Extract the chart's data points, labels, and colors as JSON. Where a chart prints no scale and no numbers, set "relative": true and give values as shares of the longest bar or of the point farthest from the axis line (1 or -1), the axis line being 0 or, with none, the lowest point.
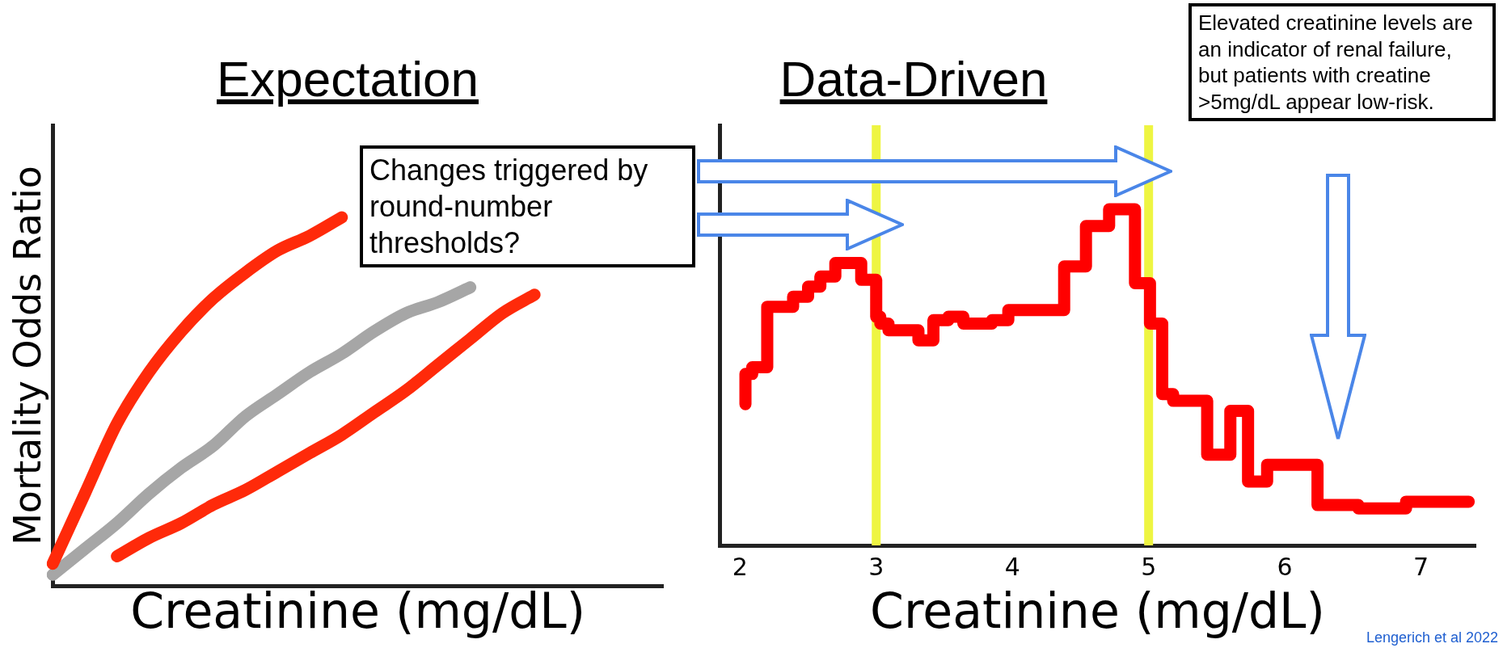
{
  "chart_data": [
    {
      "type": "line",
      "title": "Expectation",
      "xlabel": "Creatinine (mg/dL)",
      "ylabel": "Mortality Odds Ratio",
      "relative": true,
      "tick_labels": false,
      "categories": [
        null,
        null,
        null,
        null,
        null,
        null,
        null,
        null,
        null,
        null,
        null,
        null,
        null,
        null,
        null,
        null,
        null,
        null,
        null,
        null
      ],
      "series": [
        {
          "color": "#ff2a0a",
          "values": [
            0.06,
            0.25,
            0.44,
            0.58,
            0.69,
            0.78,
            0.85,
            0.91,
            0.95,
            1,
            null,
            null,
            null,
            null,
            null,
            null,
            null,
            null,
            null,
            null
          ]
        },
        {
          "color": "#a6a6a6",
          "values": [
            0.03,
            0.1,
            0.17,
            0.25,
            0.32,
            0.38,
            0.46,
            0.52,
            0.58,
            0.63,
            0.69,
            0.74,
            0.77,
            0.81,
            null,
            null,
            null,
            null,
            null,
            null
          ]
        },
        {
          "color": "#ff2a0a",
          "values": [
            null,
            null,
            0.08,
            0.13,
            0.17,
            0.22,
            0.26,
            0.31,
            0.36,
            0.41,
            0.47,
            0.53,
            0.6,
            0.67,
            0.74,
            0.79,
            null,
            null,
            null,
            null
          ]
        }
      ],
      "annotations": [
        "Changes triggered by round-number thresholds?"
      ]
    },
    {
      "type": "step",
      "title": "Data-Driven",
      "xlabel": "Creatinine (mg/dL)",
      "relative": true,
      "tick_labels": "x",
      "xlim": [
        1.85,
        7.4
      ],
      "xticks": [
        2,
        3,
        4,
        5,
        6,
        7
      ],
      "series": [
        {
          "color": "#ff0000",
          "x": [
            2.04,
            2.09,
            2.2,
            2.39,
            2.5,
            2.59,
            2.7,
            2.89,
            3.0,
            3.03,
            3.09,
            3.31,
            3.42,
            3.53,
            3.64,
            3.85,
            3.97,
            4.23,
            4.38,
            4.54,
            4.71,
            4.9,
            5.01,
            5.1,
            5.18,
            5.43,
            5.6,
            5.73,
            5.87,
            6.24,
            6.54,
            6.89,
            7.13,
            7.35
          ],
          "values": [
            0.42,
            0.51,
            0.53,
            0.71,
            0.74,
            0.77,
            0.8,
            0.84,
            0.79,
            0.68,
            0.66,
            0.64,
            0.61,
            0.67,
            0.68,
            0.66,
            0.67,
            0.7,
            0.7,
            0.83,
            0.95,
            1,
            0.78,
            0.66,
            0.45,
            0.43,
            0.27,
            0.4,
            0.19,
            0.24,
            0.12,
            0.11,
            0.13,
            0.13
          ]
        }
      ],
      "ref_lines": [
        {
          "axis": "x",
          "value": 3,
          "color": "#eef542"
        },
        {
          "axis": "x",
          "value": 5,
          "color": "#eef542"
        }
      ],
      "annotations": [
        "Elevated creatinine levels are an indicator of renal failure, but patients with creatine >5mg/dL appear low-risk.",
        "Lengerich et al 2022"
      ]
    }
  ]
}
